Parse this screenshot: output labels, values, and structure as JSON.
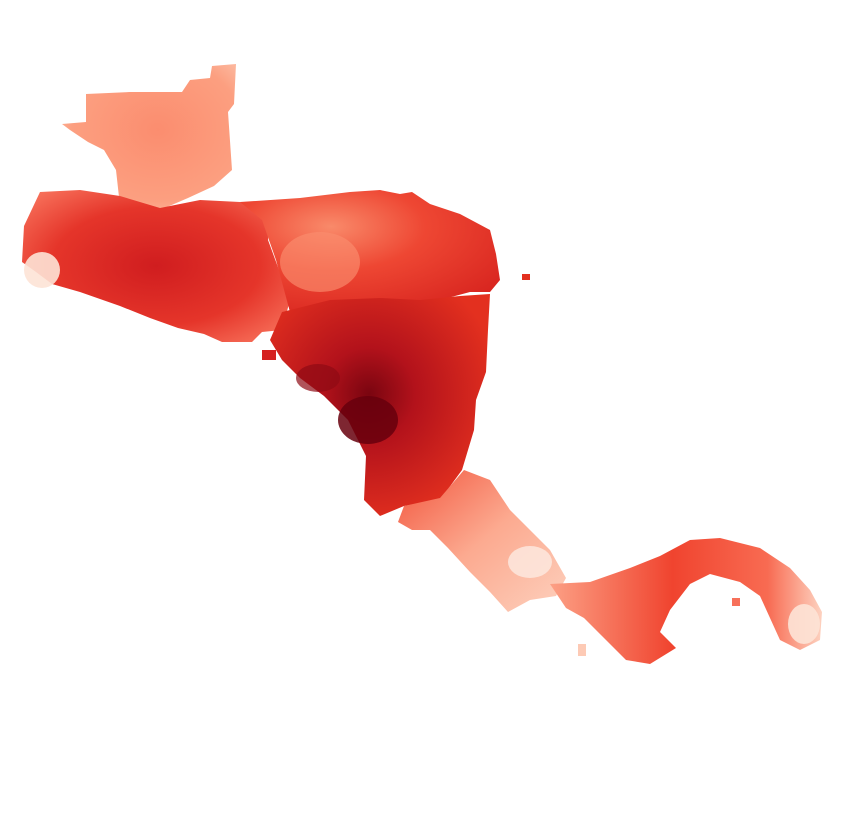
{
  "map": {
    "colormap": "Reds",
    "colors": {
      "background": "#ffffff",
      "lightest": "#fde3d6",
      "light": "#fc9f80",
      "medium": "#f5523a",
      "strong": "#e0231c",
      "dark": "#b3121b",
      "darkest": "#67000d"
    },
    "regions": [
      {
        "id": "guatemala-belize",
        "intensity": 0.55
      },
      {
        "id": "el-salvador-honduras",
        "intensity": 0.8
      },
      {
        "id": "honduras-north-east",
        "intensity": 0.75
      },
      {
        "id": "nicaragua",
        "intensity": 0.9
      },
      {
        "id": "costa-rica",
        "intensity": 0.45
      },
      {
        "id": "panama",
        "intensity": 0.6
      }
    ]
  }
}
